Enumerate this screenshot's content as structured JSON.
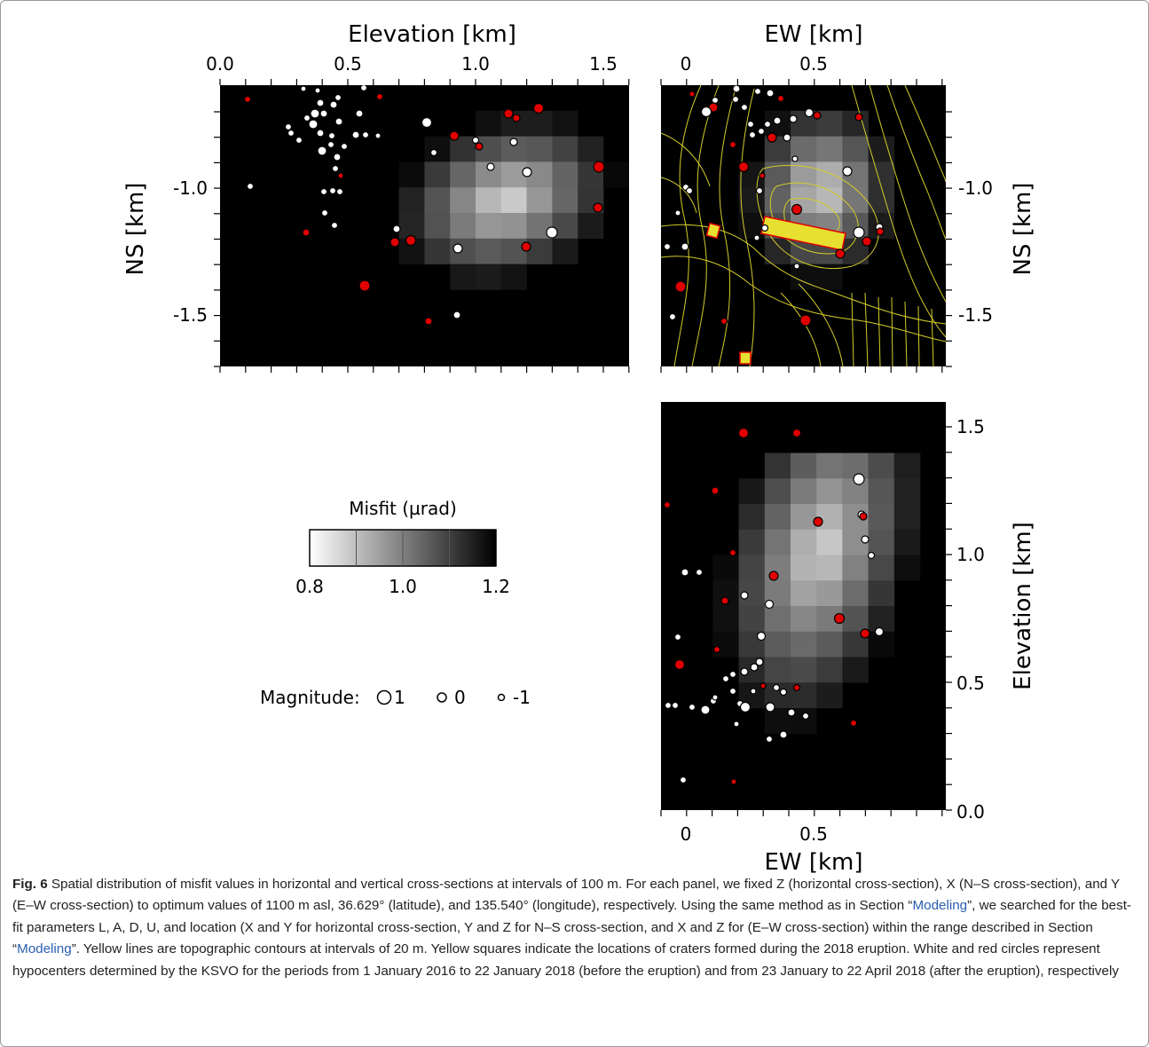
{
  "figure": {
    "panel_top_left": {
      "top_axis_label": "Elevation [km]",
      "top_ticks": [
        "0.0",
        "0.5",
        "1.0",
        "1.5"
      ],
      "left_axis_label": "NS [km]",
      "left_ticks": [
        "-1.0",
        "-1.5"
      ]
    },
    "panel_top_right": {
      "top_axis_label": "EW [km]",
      "top_ticks": [
        "0",
        "0.5"
      ],
      "right_axis_label": "NS [km]",
      "right_ticks": [
        "-1.0",
        "-1.5"
      ]
    },
    "panel_bottom_right": {
      "bottom_axis_label": "EW [km]",
      "bottom_ticks": [
        "0",
        "0.5"
      ],
      "right_axis_label": "Elevation [km]",
      "right_ticks": [
        "1.5",
        "1.0",
        "0.5",
        "0.0"
      ]
    },
    "colorbar": {
      "title": "Misfit (µrad)",
      "ticks": [
        "0.8",
        "1.0",
        "1.2"
      ],
      "range": [
        0.8,
        1.2
      ],
      "colors": {
        "low": "#ffffff",
        "high": "#000000"
      }
    },
    "legend": {
      "label": "Magnitude:",
      "entries": [
        "1",
        "0",
        "-1"
      ]
    },
    "marker_colors": {
      "before_eruption": "#ffffff",
      "after_eruption": "#e00000"
    },
    "contour_color": "#d4cc2a",
    "crater_color": "#e8e030"
  },
  "caption": {
    "lead": "Fig. 6",
    "part1": "  Spatial distribution of misfit values in horizontal and vertical cross-sections at intervals of 100 m. For each panel, we fixed Z (horizontal cross-section), X (N–S cross-section), and Y (E–W cross-section) to optimum values of 1100 m asl, 36.629° (latitude), and 135.540° (longitude), respectively. Using the same method as in Section “",
    "link1": "Modeling",
    "part2": "”, we searched for the best-fit parameters L, A, D, U, and location (X and Y for horizontal cross-section, Y and Z for N–S cross-section, and X and Z for (E–W cross-section) within the range described in Section “",
    "link2": "Modeling",
    "part3": "”. Yellow lines are topographic contours at intervals of 20 m. Yellow squares indicate the locations of craters formed during the 2018 eruption. White and red circles represent hypocenters determined by the KSVO for the periods from 1 January 2016 to 22 January 2018 (before the eruption) and from 23 January to 22 April 2018 (after the eruption), respectively"
  }
}
